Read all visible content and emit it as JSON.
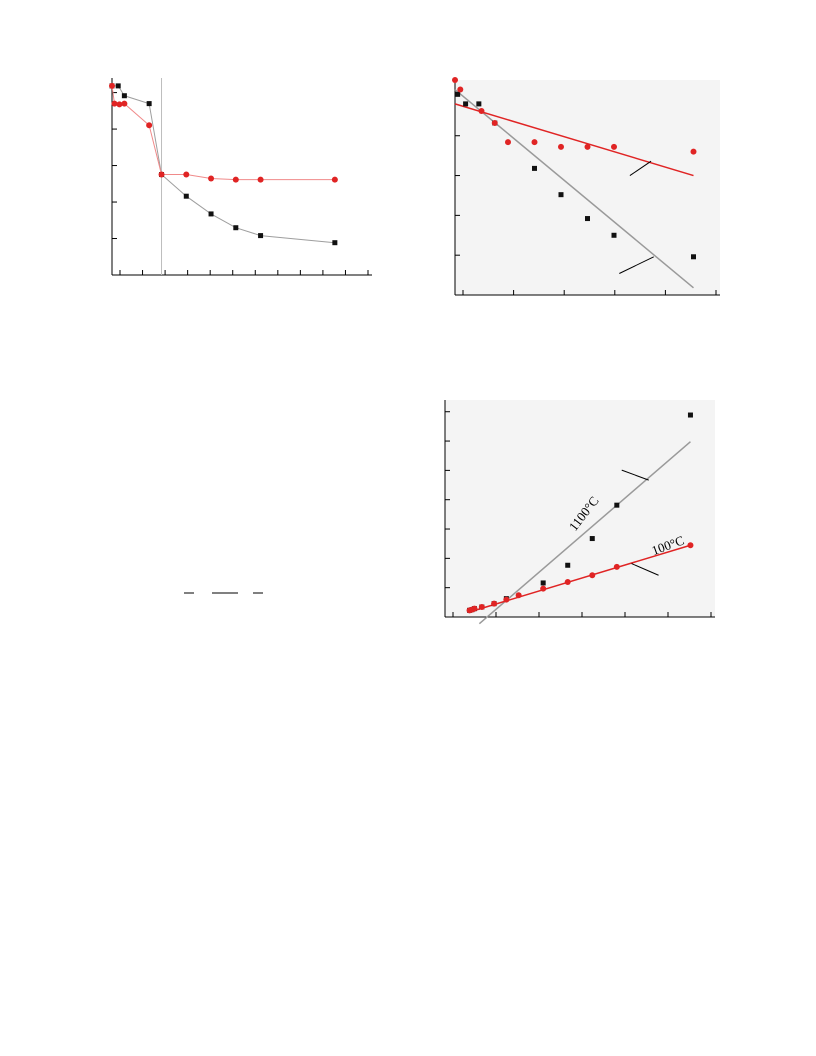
{
  "colors": {
    "black_series": "#111111",
    "red_series": "#e02424",
    "gray_fit": "#9a9a9a",
    "red_fit": "#e02424",
    "plot_bg": "#f4f4f4",
    "axis": "#000000"
  },
  "chart_data": [
    {
      "type": "line",
      "xlim": [
        0,
        10.5
      ],
      "ylim": [
        0,
        5
      ],
      "grid": false,
      "vertical_marker_x": 2.0,
      "series": [
        {
          "marker": "square",
          "color_key": "black_series",
          "points": [
            [
              0.0,
              4.8
            ],
            [
              0.25,
              4.8
            ],
            [
              0.5,
              4.55
            ],
            [
              1.5,
              4.35
            ],
            [
              2.0,
              2.55
            ],
            [
              3.0,
              2.0
            ],
            [
              4.0,
              1.55
            ],
            [
              5.0,
              1.2
            ],
            [
              6.0,
              1.0
            ],
            [
              9.0,
              0.82
            ]
          ]
        },
        {
          "marker": "circle",
          "color_key": "red_series",
          "points": [
            [
              0.0,
              4.8
            ],
            [
              0.1,
              4.35
            ],
            [
              0.3,
              4.33
            ],
            [
              0.5,
              4.35
            ],
            [
              1.5,
              3.8
            ],
            [
              2.0,
              2.55
            ],
            [
              3.0,
              2.55
            ],
            [
              4.0,
              2.45
            ],
            [
              5.0,
              2.42
            ],
            [
              6.0,
              2.42
            ],
            [
              9.0,
              2.42
            ]
          ]
        }
      ]
    },
    {
      "type": "scatter",
      "xlim": [
        0,
        5
      ],
      "ylim": [
        0,
        4.5
      ],
      "grid": false,
      "series": [
        {
          "marker": "square",
          "color_key": "black_series",
          "points": [
            [
              0.05,
              4.2
            ],
            [
              0.2,
              4.0
            ],
            [
              0.45,
              4.0
            ],
            [
              0.75,
              3.6
            ],
            [
              1.5,
              2.65
            ],
            [
              2.0,
              2.1
            ],
            [
              2.5,
              1.6
            ],
            [
              3.0,
              1.25
            ],
            [
              4.5,
              0.8
            ]
          ]
        },
        {
          "marker": "circle",
          "color_key": "red_series",
          "points": [
            [
              0.0,
              4.5
            ],
            [
              0.1,
              4.3
            ],
            [
              0.5,
              3.85
            ],
            [
              0.75,
              3.6
            ],
            [
              1.0,
              3.2
            ],
            [
              1.5,
              3.2
            ],
            [
              2.0,
              3.1
            ],
            [
              2.5,
              3.1
            ],
            [
              3.0,
              3.1
            ],
            [
              4.5,
              3.0
            ]
          ]
        }
      ],
      "fit_lines": [
        {
          "color_key": "gray_fit",
          "from": [
            0.0,
            4.3
          ],
          "to": [
            4.5,
            0.15
          ]
        },
        {
          "color_key": "red_fit",
          "from": [
            0.0,
            4.0
          ],
          "to": [
            4.5,
            2.5
          ]
        }
      ],
      "leader_lines": [
        {
          "from": [
            3.3,
            2.5
          ],
          "to": [
            3.7,
            2.8
          ]
        },
        {
          "from": [
            3.1,
            0.45
          ],
          "to": [
            3.75,
            0.8
          ]
        }
      ]
    },
    {
      "type": "scatter",
      "xlim": [
        -0.5,
        5
      ],
      "ylim": [
        -0.2,
        6.3
      ],
      "grid": false,
      "series": [
        {
          "marker": "square",
          "color_key": "black_series",
          "points": [
            [
              0.0,
              0.0
            ],
            [
              0.05,
              0.02
            ],
            [
              0.1,
              0.05
            ],
            [
              0.25,
              0.1
            ],
            [
              0.5,
              0.2
            ],
            [
              0.75,
              0.35
            ],
            [
              1.5,
              0.82
            ],
            [
              2.0,
              1.35
            ],
            [
              2.5,
              2.15
            ],
            [
              3.0,
              3.15
            ],
            [
              4.5,
              5.85
            ]
          ]
        },
        {
          "marker": "circle",
          "color_key": "red_series",
          "points": [
            [
              0.0,
              0.0
            ],
            [
              0.05,
              0.02
            ],
            [
              0.1,
              0.05
            ],
            [
              0.25,
              0.1
            ],
            [
              0.5,
              0.2
            ],
            [
              0.75,
              0.32
            ],
            [
              1.0,
              0.45
            ],
            [
              1.5,
              0.65
            ],
            [
              2.0,
              0.85
            ],
            [
              2.5,
              1.05
            ],
            [
              3.0,
              1.3
            ],
            [
              4.5,
              1.95
            ]
          ]
        }
      ],
      "fit_lines": [
        {
          "color_key": "gray_fit",
          "from": [
            0.2,
            -0.4
          ],
          "to": [
            4.5,
            5.05
          ]
        },
        {
          "color_key": "red_fit",
          "from": [
            0.0,
            -0.05
          ],
          "to": [
            4.5,
            1.95
          ]
        }
      ],
      "leader_lines": [
        {
          "from": [
            3.1,
            4.2
          ],
          "to": [
            3.65,
            3.9
          ]
        },
        {
          "from": [
            3.3,
            1.4
          ],
          "to": [
            3.85,
            1.05
          ]
        }
      ],
      "curve_labels": [
        {
          "text": "1100°C",
          "at": [
            2.15,
            2.35
          ],
          "angle": -52
        },
        {
          "text": "100°C",
          "at": [
            3.75,
            1.65
          ],
          "angle": -20
        }
      ]
    }
  ]
}
